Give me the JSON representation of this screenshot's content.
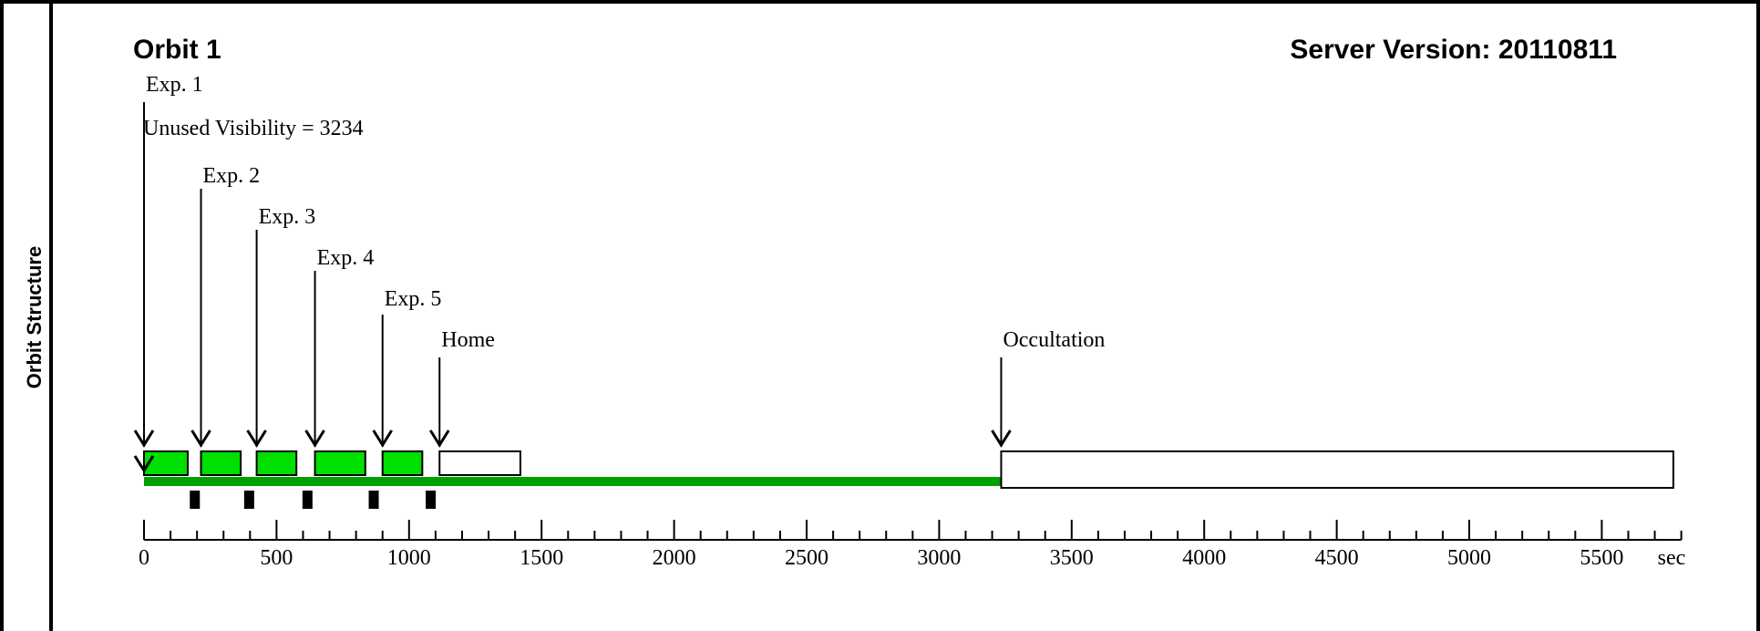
{
  "side_label": "Orbit Structure",
  "orbit_title": "Orbit 1",
  "server_version": "Server Version: 20110811",
  "colors": {
    "exposure": "#00e000",
    "visibility": "#00a000",
    "outline": "#000000",
    "empty": "#ffffff"
  },
  "chart_data": {
    "type": "timeline",
    "xlim": [
      0,
      5800
    ],
    "x_unit": "sec",
    "x_ticks": [
      0,
      500,
      1000,
      1500,
      2000,
      2500,
      3000,
      3500,
      4000,
      4500,
      5000,
      5500
    ],
    "minor_tick_step": 100,
    "visibility": [
      0,
      3234
    ],
    "unused_visibility_label": "Unused Visibility = 3234",
    "events": [
      {
        "label": "Exp. 1",
        "t": 0
      },
      {
        "label": "Exp. 2",
        "t": 215
      },
      {
        "label": "Exp. 3",
        "t": 425
      },
      {
        "label": "Exp. 4",
        "t": 645
      },
      {
        "label": "Exp. 5",
        "t": 900
      },
      {
        "label": "Home",
        "t": 1115
      },
      {
        "label": "Occultation",
        "t": 3234
      }
    ],
    "exposures": [
      {
        "start": 0,
        "end": 165
      },
      {
        "start": 215,
        "end": 365
      },
      {
        "start": 425,
        "end": 575
      },
      {
        "start": 645,
        "end": 835
      },
      {
        "start": 900,
        "end": 1050
      }
    ],
    "home_block": {
      "start": 1115,
      "end": 1420
    },
    "occultation_block": {
      "start": 3234,
      "end": 5770
    },
    "readouts": [
      190,
      395,
      615,
      865,
      1080
    ]
  }
}
